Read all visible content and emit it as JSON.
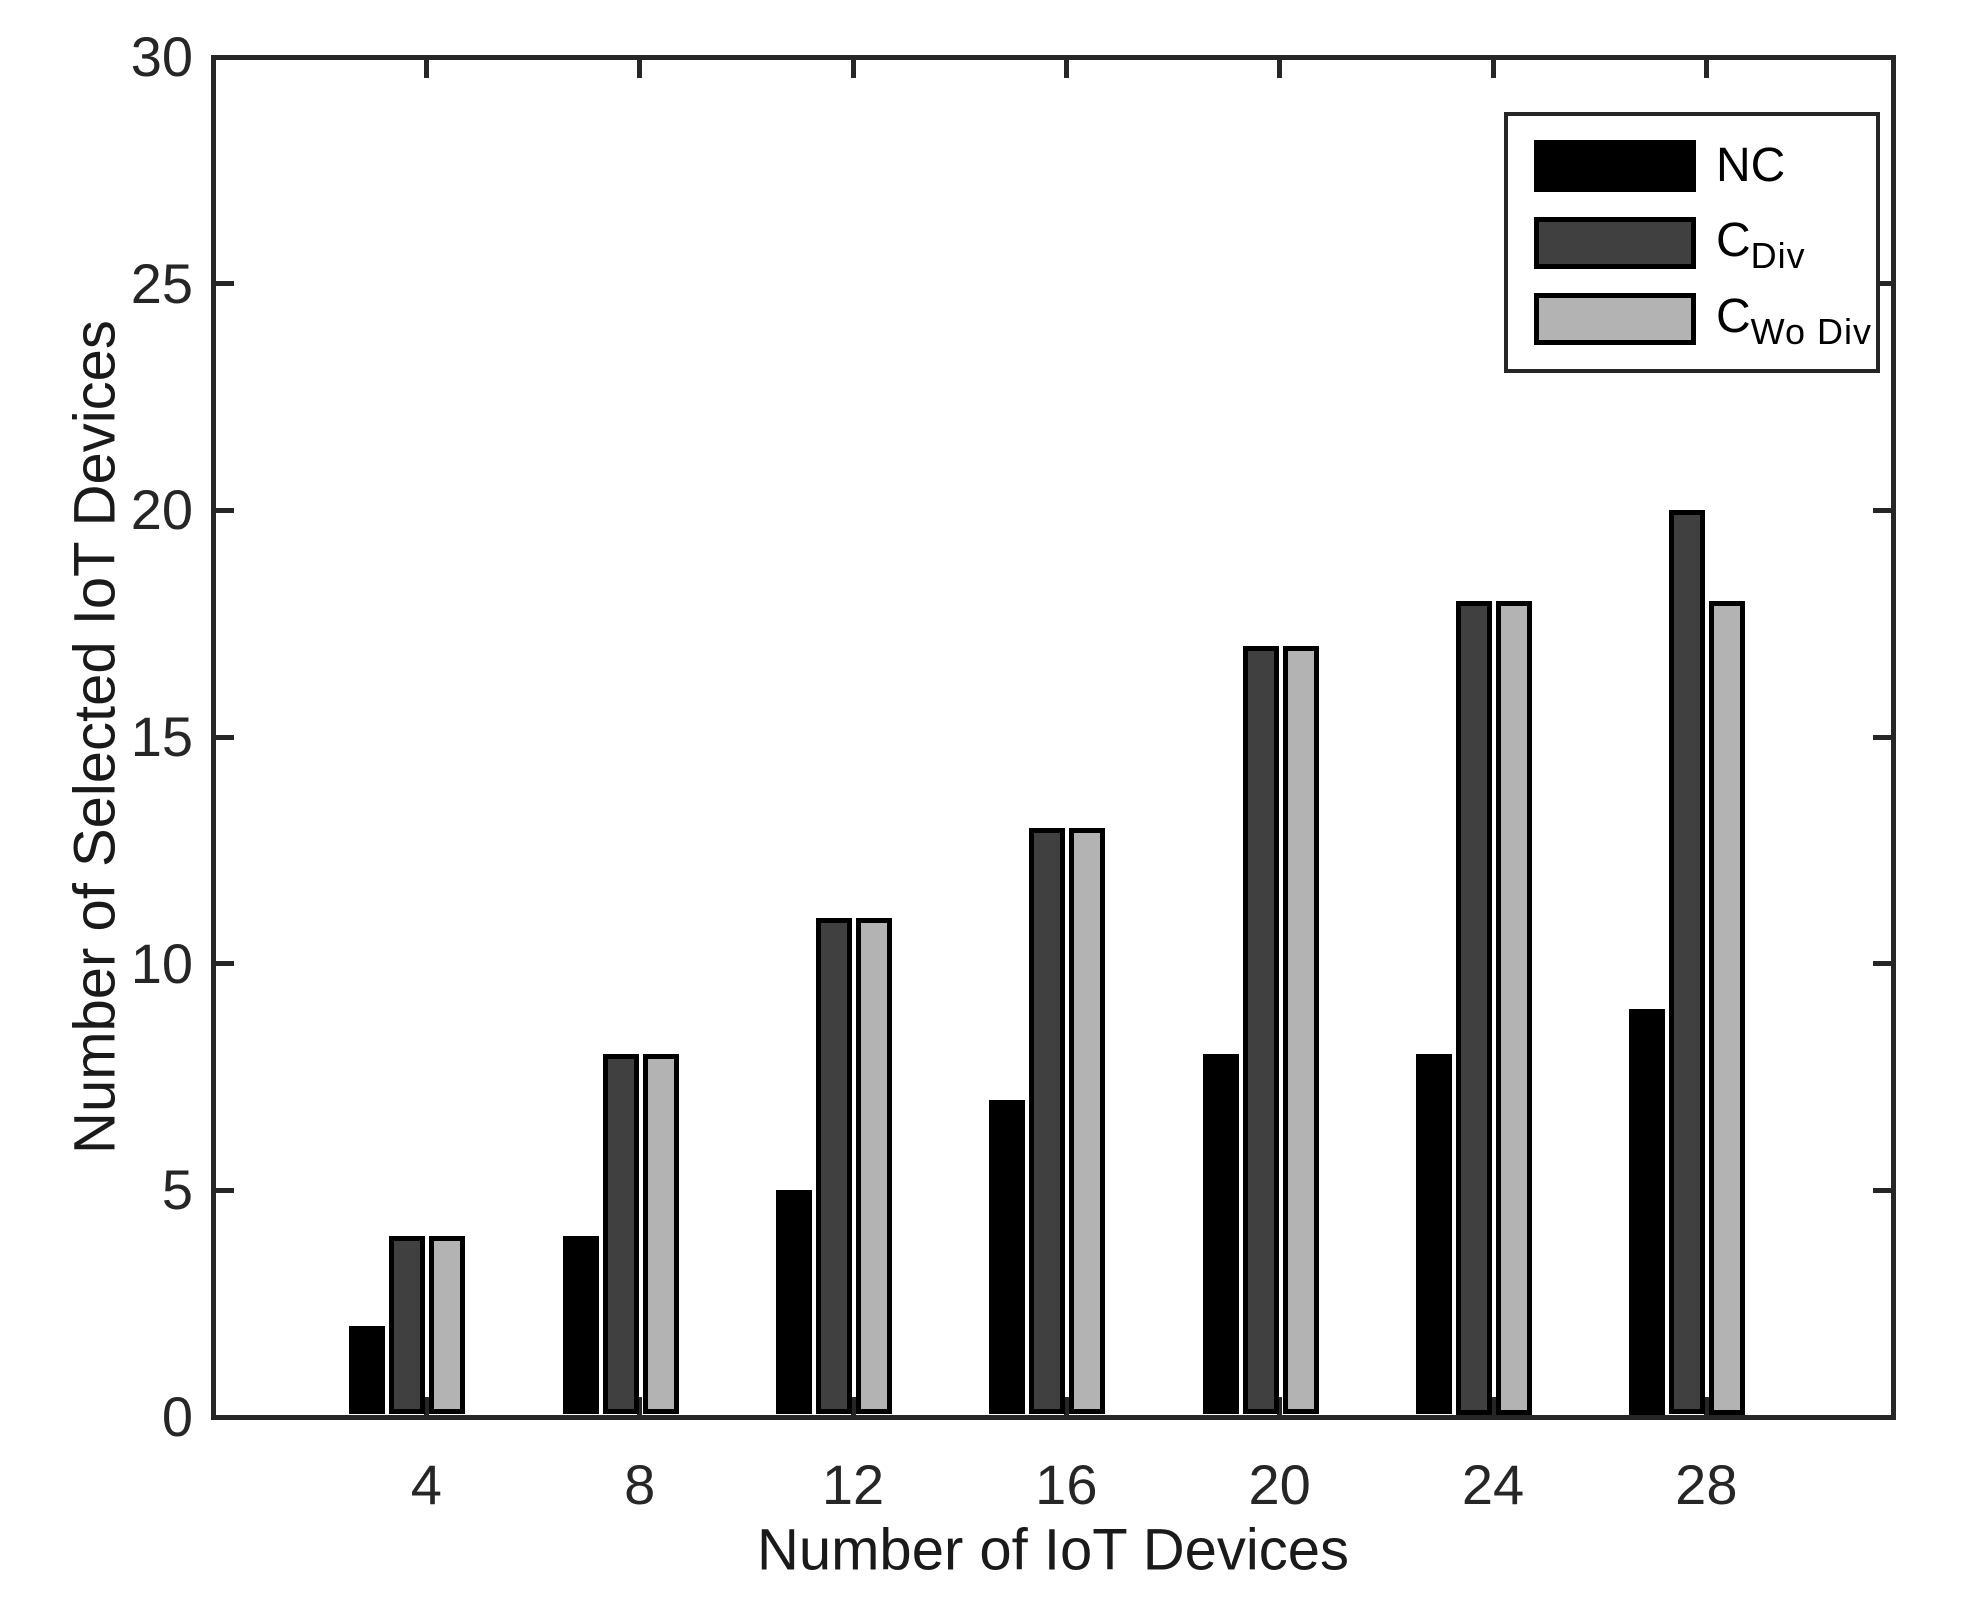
{
  "figure": {
    "background_color": "#ffffff",
    "axis_color": "#262626",
    "bar_edge_color": "#000000",
    "text_color": "#1a1a1a"
  },
  "chart_data": {
    "type": "bar",
    "title": "",
    "xlabel": "Number of IoT Devices",
    "ylabel": "Number of Selected IoT Devices",
    "categories": [
      4,
      8,
      12,
      16,
      20,
      24,
      28
    ],
    "series": [
      {
        "name": "NC",
        "legend_main": "NC",
        "legend_sub": "",
        "color": "#000000",
        "values": [
          2,
          4,
          5,
          7,
          8,
          8,
          9
        ]
      },
      {
        "name": "C_Div",
        "legend_main": "C",
        "legend_sub": "Div",
        "color": "#404040",
        "values": [
          4,
          8,
          11,
          13,
          17,
          18,
          20
        ]
      },
      {
        "name": "C_WoDiv",
        "legend_main": "C",
        "legend_sub": "Wo Div",
        "color": "#b3b3b3",
        "values": [
          4,
          8,
          11,
          13,
          17,
          18,
          18
        ]
      }
    ],
    "ylim": [
      0,
      30
    ],
    "yticks": [
      0,
      5,
      10,
      15,
      20,
      25,
      30
    ],
    "xlim": [
      0,
      31.5
    ],
    "grid": false,
    "legend_position": "top-right"
  }
}
